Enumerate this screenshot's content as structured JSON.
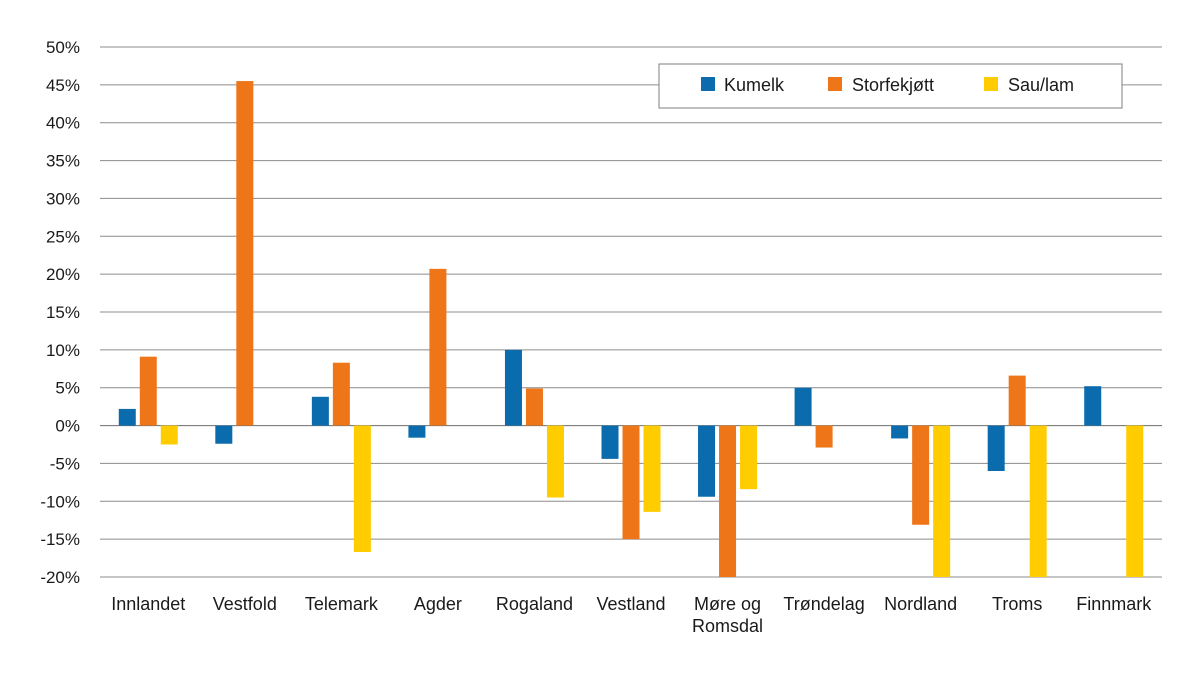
{
  "chart_data": {
    "type": "bar",
    "categories": [
      [
        "Innlandet"
      ],
      [
        "Vestfold"
      ],
      [
        "Telemark"
      ],
      [
        "Agder"
      ],
      [
        "Rogaland"
      ],
      [
        "Vestland"
      ],
      [
        "Møre og",
        "Romsdal"
      ],
      [
        "Trøndelag"
      ],
      [
        "Nordland"
      ],
      [
        "Troms"
      ],
      [
        "Finnmark"
      ]
    ],
    "series": [
      {
        "name": "Kumelk",
        "color": "#0a6bad",
        "values": [
          2.2,
          -2.4,
          3.8,
          -1.6,
          10.0,
          -4.4,
          -9.4,
          5.0,
          -1.7,
          -6.0,
          5.2
        ]
      },
      {
        "name": "Storfekjøtt",
        "color": "#ee7518",
        "values": [
          9.1,
          45.5,
          8.3,
          20.7,
          4.9,
          -15.0,
          -20.0,
          -2.9,
          -13.1,
          6.6,
          null
        ]
      },
      {
        "name": "Sau/lam",
        "color": "#ffcc00",
        "values": [
          -2.5,
          null,
          -16.7,
          null,
          -9.5,
          -11.4,
          -8.4,
          null,
          -20.0,
          -20.0,
          -20.0
        ]
      }
    ],
    "ylim": [
      -20,
      50
    ],
    "yticks": [
      50,
      45,
      40,
      35,
      30,
      25,
      20,
      15,
      10,
      5,
      0,
      -5,
      -10,
      -15,
      -20
    ],
    "ytick_suffix": "%",
    "grid": true,
    "legend_position": "top-right",
    "xlabel": "",
    "ylabel": "",
    "title": ""
  }
}
